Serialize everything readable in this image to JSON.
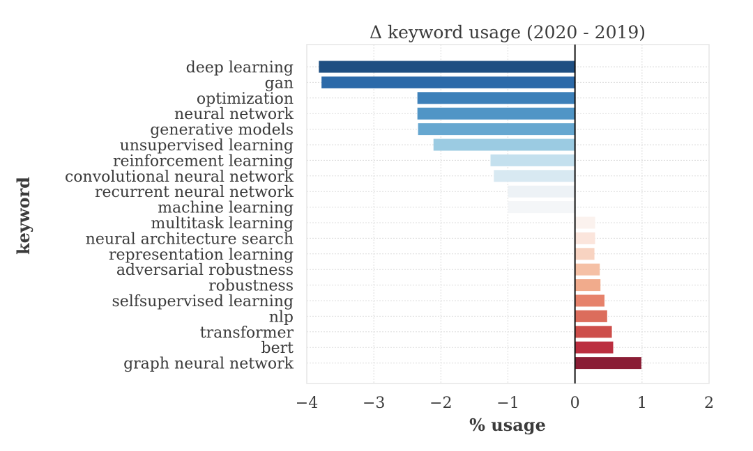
{
  "chart_data": {
    "type": "bar",
    "orientation": "horizontal",
    "title": "Δ keyword usage (2020 - 2019)",
    "xlabel": "% usage",
    "ylabel": "keyword",
    "xlim": [
      -4,
      2
    ],
    "xticks": [
      -4,
      -3,
      -2,
      -1,
      0,
      1,
      2
    ],
    "xtick_labels": [
      "−4",
      "−3",
      "−2",
      "−1",
      "0",
      "1",
      "2"
    ],
    "grid": true,
    "colormap": "RdBu (blue negative → red positive)",
    "categories": [
      "deep learning",
      "gan",
      "optimization",
      "neural network",
      "generative models",
      "unsupervised learning",
      "reinforcement learning",
      "convolutional neural network",
      "recurrent neural network",
      "machine learning",
      "multitask learning",
      "neural architecture search",
      "representation learning",
      "adversarial robustness",
      "robustness",
      "selfsupervised learning",
      "nlp",
      "transformer",
      "bert",
      "graph neural network"
    ],
    "values": [
      -3.82,
      -3.78,
      -2.35,
      -2.35,
      -2.34,
      -2.11,
      -1.26,
      -1.21,
      -1.0,
      -1.0,
      0.3,
      0.3,
      0.29,
      0.37,
      0.38,
      0.44,
      0.48,
      0.55,
      0.57,
      0.99
    ],
    "colors": [
      "#1f4f82",
      "#2c6aa9",
      "#3d80b9",
      "#5095c6",
      "#66a7d0",
      "#9bcbe2",
      "#c4e0ee",
      "#d8e9f2",
      "#edf2f6",
      "#f4f6f8",
      "#fbf2ee",
      "#fbe5dc",
      "#f8d3c1",
      "#f5c0a5",
      "#f1ab8c",
      "#e6826b",
      "#dc6d5c",
      "#cd4e4a",
      "#bb2e3f",
      "#8a1d35"
    ]
  }
}
